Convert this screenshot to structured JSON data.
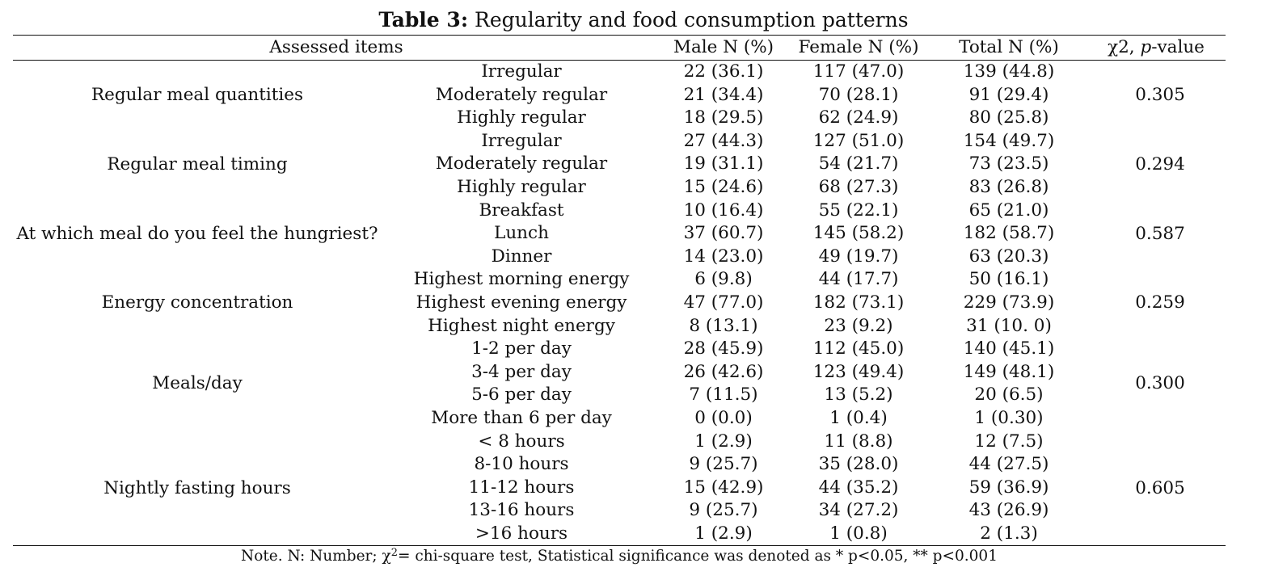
{
  "caption": {
    "label": "Table 3:",
    "text": "Regularity and food consumption patterns"
  },
  "headers": {
    "item": "Assessed items",
    "male": "Male N (%)",
    "female": "Female N (%)",
    "total": "Total N (%)",
    "chi_prefix": "χ2, ",
    "chi_p": "p",
    "chi_suffix": "-value"
  },
  "groups": [
    {
      "label": "Regular meal quantities",
      "p": "0.305",
      "rows": [
        {
          "cat": "Irregular",
          "male": "22 (36.1)",
          "female": "117 (47.0)",
          "total": "139 (44.8)"
        },
        {
          "cat": "Moderately regular",
          "male": "21 (34.4)",
          "female": "70 (28.1)",
          "total": "91 (29.4)"
        },
        {
          "cat": "Highly regular",
          "male": "18 (29.5)",
          "female": "62 (24.9)",
          "total": "80 (25.8)"
        }
      ]
    },
    {
      "label": "Regular meal timing",
      "p": "0.294",
      "rows": [
        {
          "cat": "Irregular",
          "male": "27 (44.3)",
          "female": "127 (51.0)",
          "total": "154 (49.7)"
        },
        {
          "cat": "Moderately regular",
          "male": "19 (31.1)",
          "female": "54 (21.7)",
          "total": "73 (23.5)"
        },
        {
          "cat": "Highly regular",
          "male": "15 (24.6)",
          "female": "68 (27.3)",
          "total": "83 (26.8)"
        }
      ]
    },
    {
      "label": "At which meal do you feel the hungriest?",
      "p": "0.587",
      "rows": [
        {
          "cat": "Breakfast",
          "male": "10 (16.4)",
          "female": "55 (22.1)",
          "total": "65 (21.0)"
        },
        {
          "cat": "Lunch",
          "male": "37 (60.7)",
          "female": "145 (58.2)",
          "total": "182 (58.7)"
        },
        {
          "cat": "Dinner",
          "male": "14 (23.0)",
          "female": "49 (19.7)",
          "total": "63 (20.3)"
        }
      ]
    },
    {
      "label": "Energy concentration",
      "p": "0.259",
      "rows": [
        {
          "cat": "Highest morning energy",
          "male": "6 (9.8)",
          "female": "44 (17.7)",
          "total": "50 (16.1)"
        },
        {
          "cat": "Highest evening energy",
          "male": "47 (77.0)",
          "female": "182 (73.1)",
          "total": "229 (73.9)"
        },
        {
          "cat": "Highest night energy",
          "male": "8 (13.1)",
          "female": "23 (9.2)",
          "total": "31 (10. 0)"
        }
      ]
    },
    {
      "label": "Meals/day",
      "p": "0.300",
      "rows": [
        {
          "cat": "1-2 per day",
          "male": "28 (45.9)",
          "female": "112 (45.0)",
          "total": "140 (45.1)"
        },
        {
          "cat": "3-4 per day",
          "male": "26 (42.6)",
          "female": "123 (49.4)",
          "total": "149 (48.1)"
        },
        {
          "cat": "5-6 per day",
          "male": "7 (11.5)",
          "female": "13 (5.2)",
          "total": "20 (6.5)"
        },
        {
          "cat": "More than 6 per day",
          "male": "0 (0.0)",
          "female": "1 (0.4)",
          "total": "1 (0.30)"
        }
      ]
    },
    {
      "label": "Nightly fasting hours",
      "p": "0.605",
      "rows": [
        {
          "cat": "< 8 hours",
          "male": "1 (2.9)",
          "female": "11 (8.8)",
          "total": "12 (7.5)"
        },
        {
          "cat": "8-10 hours",
          "male": "9 (25.7)",
          "female": "35 (28.0)",
          "total": "44 (27.5)"
        },
        {
          "cat": "11-12 hours",
          "male": "15 (42.9)",
          "female": "44 (35.2)",
          "total": "59 (36.9)"
        },
        {
          "cat": "13-16 hours",
          "male": "9 (25.7)",
          "female": "34 (27.2)",
          "total": "43 (26.9)"
        },
        {
          "cat": ">16 hours",
          "male": "1 (2.9)",
          "female": "1 (0.8)",
          "total": "2 (1.3)"
        }
      ]
    }
  ],
  "note": {
    "before": "Note. N: Number; χ",
    "sup": "2",
    "after": "= chi-square test, Statistical significance was denoted as * p<0.05, ** p<0.001"
  }
}
